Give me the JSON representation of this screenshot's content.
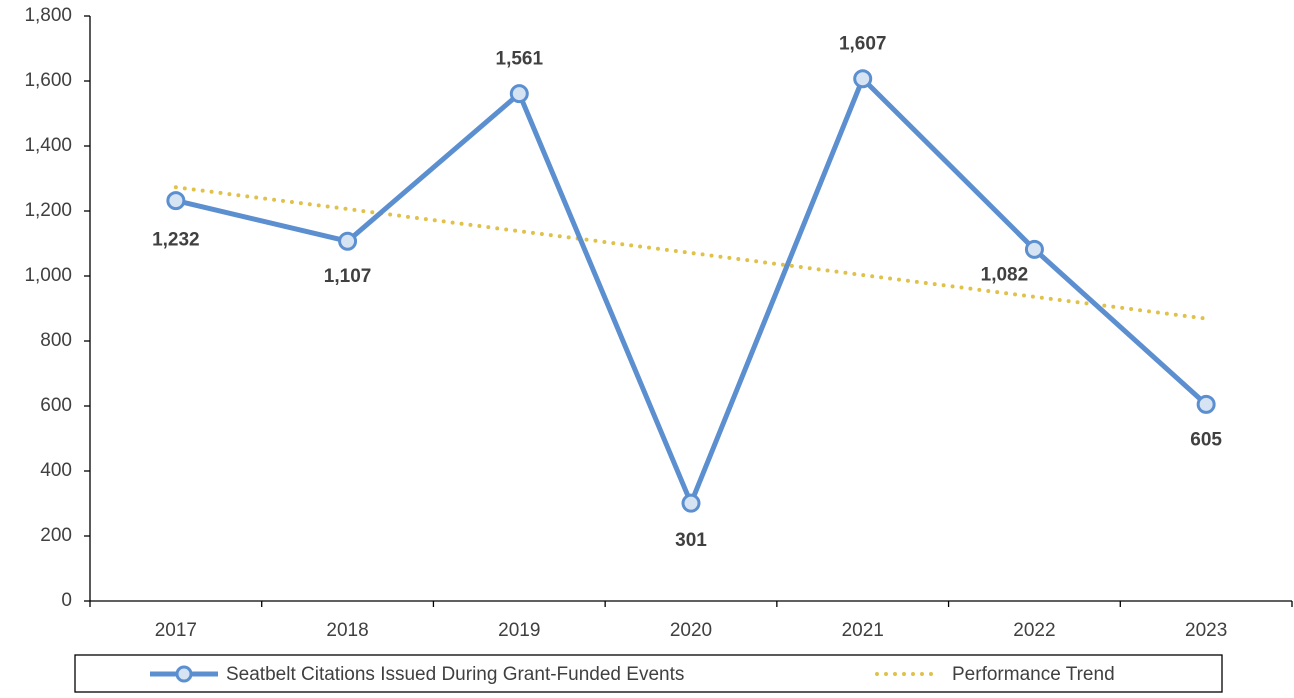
{
  "chart_data": {
    "type": "line",
    "categories": [
      "2017",
      "2018",
      "2019",
      "2020",
      "2021",
      "2022",
      "2023"
    ],
    "series": [
      {
        "name": "Seatbelt Citations Issued During Grant-Funded Events",
        "color": "#5b8fd0",
        "marker_fill": "#d6e3f3",
        "values": [
          1232,
          1107,
          1561,
          301,
          1607,
          1082,
          605
        ],
        "value_labels": [
          "1,232",
          "1,107",
          "1,561",
          "301",
          "1,607",
          "1,082",
          "605"
        ]
      },
      {
        "name": "Performance Trend",
        "color": "#e0c14a",
        "style": "dotted",
        "values": [
          1273,
          1206,
          1138,
          1071,
          1003,
          936,
          869
        ]
      }
    ],
    "ylim": [
      0,
      1800
    ],
    "yticks": [
      0,
      200,
      400,
      600,
      800,
      {
        "value": 1000,
        "label": "1,000"
      },
      {
        "value": 1200,
        "label": "1,200"
      },
      {
        "value": 1400,
        "label": "1,400"
      },
      {
        "value": 1600,
        "label": "1,600"
      },
      {
        "value": 1800,
        "label": "1,800"
      }
    ],
    "grid": false,
    "legend": "bottom"
  }
}
